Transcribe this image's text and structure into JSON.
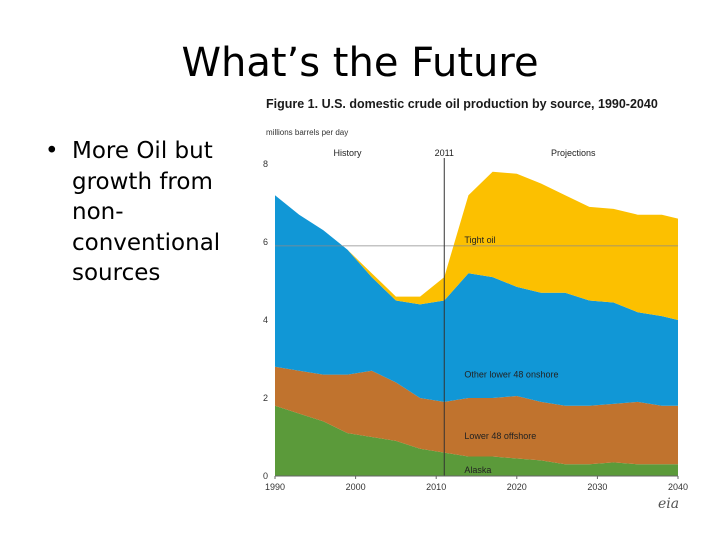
{
  "slide": {
    "title": "What’s the Future",
    "bullet_symbol": "•",
    "bullet_text": "More Oil but growth from non-conventional sources"
  },
  "logo": {
    "text": "eia"
  },
  "chart_data": {
    "type": "area",
    "stacked": true,
    "title": "Figure 1. U.S. domestic crude oil production by source, 1990-2040",
    "ylabel": "millions barrels per day",
    "xlim": [
      1990,
      2040
    ],
    "ylim": [
      0,
      8
    ],
    "x_ticks": [
      1990,
      2000,
      2010,
      2020,
      2030,
      2040
    ],
    "y_ticks": [
      0,
      2,
      4,
      6,
      8
    ],
    "divider_year": 2011,
    "header_labels": {
      "history": "History",
      "divider": "2011",
      "projections": "Projections"
    },
    "reference_line_y": 5.9,
    "x": [
      1990,
      1993,
      1996,
      1999,
      2002,
      2005,
      2008,
      2011,
      2014,
      2017,
      2020,
      2023,
      2026,
      2029,
      2032,
      2035,
      2038,
      2040
    ],
    "series": [
      {
        "name": "Alaska",
        "color": "#5b9a3a",
        "values": [
          1.8,
          1.6,
          1.4,
          1.1,
          1.0,
          0.9,
          0.7,
          0.6,
          0.5,
          0.5,
          0.45,
          0.4,
          0.3,
          0.3,
          0.35,
          0.3,
          0.3,
          0.3
        ]
      },
      {
        "name": "Lower 48 offshore",
        "color": "#c0732e",
        "values": [
          1.0,
          1.1,
          1.2,
          1.5,
          1.7,
          1.5,
          1.3,
          1.3,
          1.5,
          1.5,
          1.6,
          1.5,
          1.5,
          1.5,
          1.5,
          1.6,
          1.5,
          1.5
        ]
      },
      {
        "name": "Other lower 48 onshore",
        "color": "#1197d6",
        "values": [
          4.4,
          4.0,
          3.7,
          3.2,
          2.4,
          2.1,
          2.4,
          2.6,
          3.2,
          3.1,
          2.8,
          2.8,
          2.9,
          2.7,
          2.6,
          2.3,
          2.3,
          2.2
        ]
      },
      {
        "name": "Tight oil",
        "color": "#fcc000",
        "values": [
          0.0,
          0.0,
          0.0,
          0.0,
          0.1,
          0.1,
          0.2,
          0.6,
          2.0,
          2.7,
          2.9,
          2.8,
          2.5,
          2.4,
          2.4,
          2.5,
          2.6,
          2.6
        ]
      }
    ],
    "label_positions_years": {
      "Tight oil": 2013.5,
      "Other lower 48 onshore": 2013.5,
      "Lower 48 offshore": 2013.5,
      "Alaska": 2013.5
    }
  }
}
